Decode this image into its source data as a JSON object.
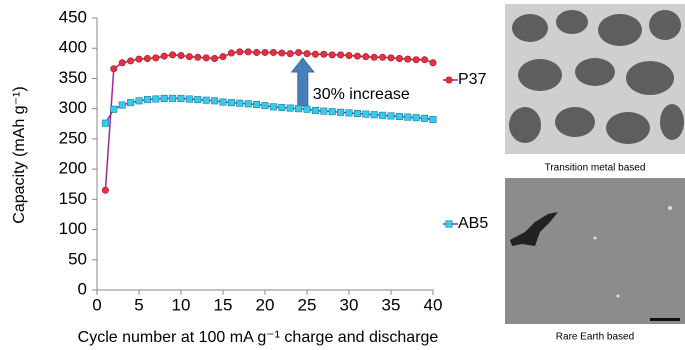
{
  "chart_data": {
    "type": "line",
    "y_label": "Capacity (mAh g⁻¹)",
    "x_label": "Cycle number at 100 mA g⁻¹ charge and discharge",
    "annotation": "30% increase",
    "x": [
      1,
      2,
      3,
      4,
      5,
      6,
      7,
      8,
      9,
      10,
      11,
      12,
      13,
      14,
      15,
      16,
      17,
      18,
      19,
      20,
      21,
      22,
      23,
      24,
      25,
      26,
      27,
      28,
      29,
      30,
      31,
      32,
      33,
      34,
      35,
      36,
      37,
      38,
      39,
      40
    ],
    "series": [
      {
        "name": "P37",
        "color": "#e8303c",
        "line_color": "#9b2a9b",
        "marker": "circle",
        "values": [
          165,
          366,
          376,
          379,
          382,
          383,
          384,
          387,
          389,
          388,
          386,
          385,
          384,
          383,
          386,
          392,
          394,
          394,
          393,
          393,
          393,
          392,
          391,
          393,
          391,
          390,
          390,
          389,
          389,
          388,
          387,
          386,
          385,
          385,
          384,
          383,
          382,
          381,
          381,
          376
        ]
      },
      {
        "name": "AB5",
        "color": "#33ccee",
        "line_color": "#7a3aa0",
        "marker": "square",
        "values": [
          276,
          299,
          306,
          310,
          313,
          315,
          316,
          317,
          317,
          317,
          316,
          315,
          314,
          313,
          311,
          310,
          309,
          308,
          307,
          305,
          303,
          302,
          301,
          300,
          299,
          297,
          296,
          295,
          294,
          293,
          292,
          291,
          290,
          289,
          288,
          287,
          286,
          285,
          284,
          282
        ]
      }
    ],
    "xlim": [
      0,
      40
    ],
    "xticks": [
      0,
      5,
      10,
      15,
      20,
      25,
      30,
      35,
      40
    ],
    "ylim": [
      0,
      450
    ],
    "yticks": [
      0,
      50,
      100,
      150,
      200,
      250,
      300,
      350,
      400,
      450
    ],
    "grid": false,
    "legend": "right",
    "arrow_color": "#4a7ebb"
  },
  "images": [
    {
      "caption": "Transition metal based"
    },
    {
      "caption": "Rare Earth based"
    }
  ]
}
